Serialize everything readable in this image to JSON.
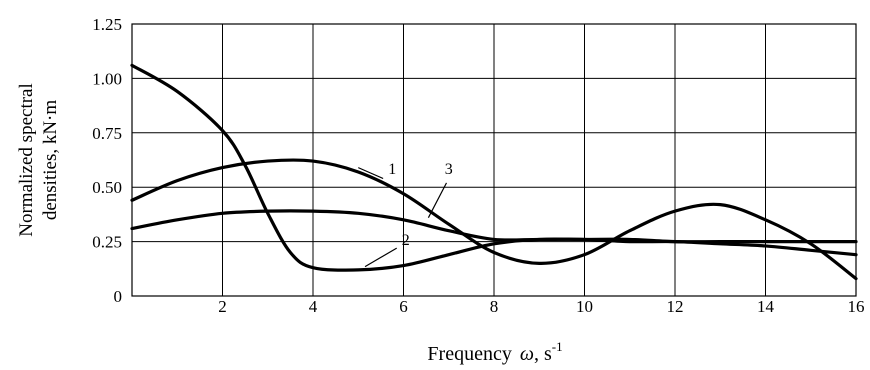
{
  "chart_data": {
    "type": "line",
    "xlabel_main": "Frequency",
    "xlabel_symbol": "ω",
    "xlabel_unit": ", s",
    "xlabel_exp": "-1",
    "ylabel_line1": "Normalized spectral",
    "ylabel_line2": "densities, kN·m",
    "xlim": [
      0,
      16
    ],
    "ylim": [
      0,
      1.25
    ],
    "x_ticks": [
      0,
      2,
      4,
      6,
      8,
      10,
      12,
      14,
      16
    ],
    "x_tick_labels": [
      "2",
      "4",
      "6",
      "8",
      "10",
      "12",
      "14",
      "16"
    ],
    "y_ticks": [
      0,
      0.25,
      0.5,
      0.75,
      1.0,
      1.25
    ],
    "y_tick_labels": [
      "0",
      "0.25",
      "0.50",
      "0.75",
      "1.00",
      "1.25"
    ],
    "grid": true,
    "series": [
      {
        "name": "1",
        "x": [
          0,
          1,
          2,
          3,
          4,
          5,
          6,
          7,
          8,
          9,
          10,
          11,
          12,
          13,
          14,
          15,
          16
        ],
        "y": [
          0.44,
          0.53,
          0.59,
          0.62,
          0.62,
          0.57,
          0.47,
          0.33,
          0.2,
          0.15,
          0.19,
          0.3,
          0.39,
          0.42,
          0.35,
          0.24,
          0.08
        ]
      },
      {
        "name": "2",
        "x": [
          0,
          1,
          2,
          2.5,
          3,
          3.5,
          4,
          5,
          6,
          7,
          8,
          9,
          10,
          11,
          12,
          13,
          14,
          15,
          16
        ],
        "y": [
          1.06,
          0.94,
          0.76,
          0.6,
          0.38,
          0.2,
          0.13,
          0.12,
          0.14,
          0.19,
          0.24,
          0.26,
          0.26,
          0.26,
          0.25,
          0.25,
          0.25,
          0.25,
          0.25
        ]
      },
      {
        "name": "3",
        "x": [
          0,
          1,
          2,
          3,
          4,
          5,
          6,
          7,
          8,
          9,
          10,
          11,
          12,
          13,
          14,
          15,
          16
        ],
        "y": [
          0.31,
          0.35,
          0.38,
          0.39,
          0.39,
          0.38,
          0.35,
          0.3,
          0.26,
          0.26,
          0.26,
          0.25,
          0.25,
          0.24,
          0.23,
          0.21,
          0.19
        ]
      }
    ],
    "curve_labels": [
      {
        "text": "1",
        "x": 11.9,
        "y": 0.58
      },
      {
        "text": "2",
        "x": 11.4,
        "y": 0.235
      },
      {
        "text": "3",
        "x": 13.35,
        "y": 0.53
      }
    ]
  }
}
